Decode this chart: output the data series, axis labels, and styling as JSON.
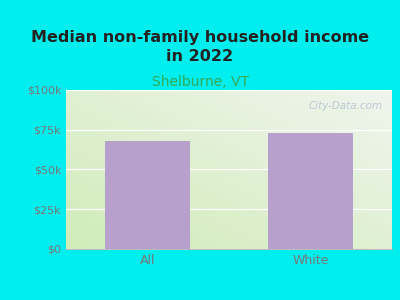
{
  "title": "Median non-family household income\nin 2022",
  "subtitle": "Shelburne, VT",
  "categories": [
    "All",
    "White"
  ],
  "values": [
    68000,
    73000
  ],
  "bar_color": "#b8a0cc",
  "background_color": "#00EEEE",
  "plot_bg_color": "#d8ecc8",
  "ymin": 0,
  "ymax": 100000,
  "yticks": [
    0,
    25000,
    50000,
    75000,
    100000
  ],
  "ytick_labels": [
    "$0",
    "$25k",
    "$50k",
    "$75k",
    "$100k"
  ],
  "title_fontsize": 11.5,
  "subtitle_fontsize": 10,
  "subtitle_color": "#33aa55",
  "tick_color": "#777777",
  "axis_label_fontsize": 9,
  "watermark": "City-Data.com"
}
